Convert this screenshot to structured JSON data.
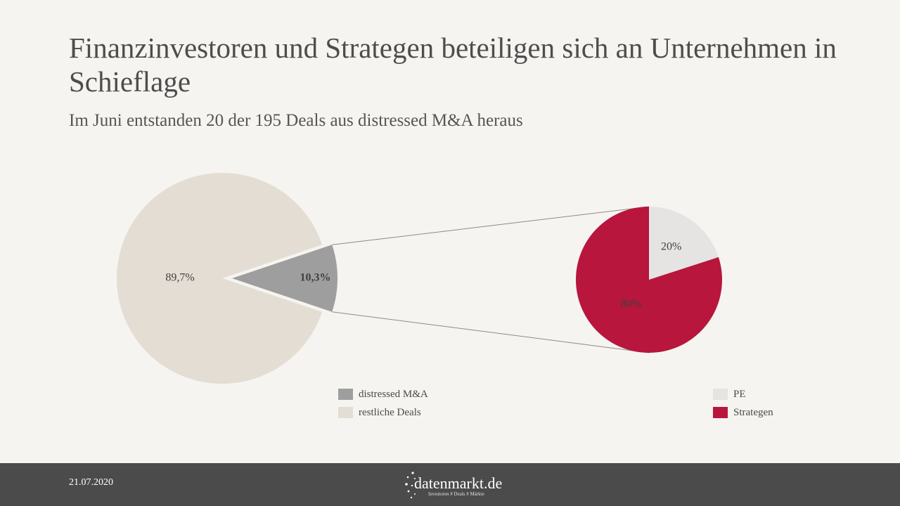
{
  "header": {
    "title": "Finanzinvestoren und Strategen beteiligen sich an Unternehmen in Schieflage",
    "subtitle": "Im Juni entstanden 20 der 195 Deals aus distressed M&A heraus"
  },
  "chart_data": [
    {
      "type": "pie",
      "slices": [
        {
          "label": "distressed M&A",
          "value": 10.3,
          "display": "10,3%",
          "color": "#9e9e9e"
        },
        {
          "label": "restliche Deals",
          "value": 89.7,
          "display": "89,7%",
          "color": "#e4ddd3"
        }
      ],
      "legend_placement": "bottom"
    },
    {
      "type": "pie",
      "slices": [
        {
          "label": "PE",
          "value": 20,
          "display": "20%",
          "color": "#e6e4e3"
        },
        {
          "label": "Strategen",
          "value": 80,
          "display": "80%",
          "color": "#b8163c"
        }
      ],
      "legend_placement": "bottom-right"
    }
  ],
  "footer": {
    "date": "21.07.2020",
    "logo_text": "datenmarkt.de",
    "logo_tagline": "Investoren # Deals # Märkte"
  }
}
